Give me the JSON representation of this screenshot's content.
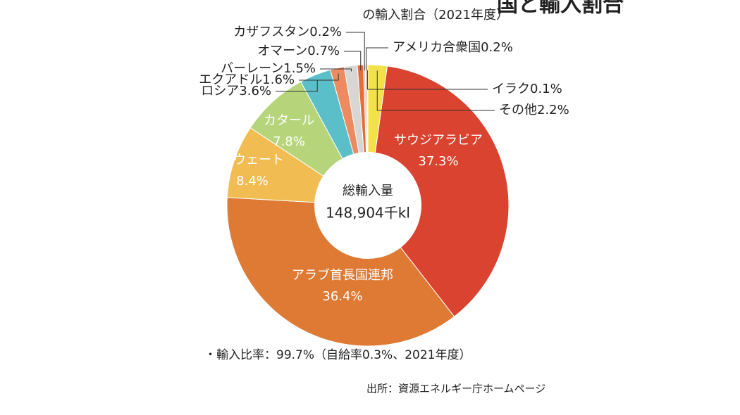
{
  "chart_data": {
    "type": "pie",
    "title": "国と輸入割合",
    "subtitle": "の輸入割合（2021年度）",
    "categories": [
      "その他",
      "サウジアラビア",
      "アラブ首長国連邦",
      "クウェート",
      "カタール",
      "ロシア",
      "エクアドル",
      "バーレーン",
      "オマーン",
      "カザフスタン",
      "アメリカ合衆国",
      "イラク"
    ],
    "values": [
      2.2,
      37.3,
      36.4,
      8.4,
      7.8,
      3.6,
      1.6,
      1.5,
      0.7,
      0.2,
      0.2,
      0.1
    ],
    "value_labels": [
      "2.2%",
      "37.3%",
      "36.4%",
      "8.4%",
      "7.8%",
      "3.6%",
      "1.6%",
      "1.5%",
      "0.7%",
      "0.2%",
      "0.2%",
      "0.1%"
    ],
    "colors": [
      "#f2e14a",
      "#d9432f",
      "#de7a34",
      "#f1bd52",
      "#b6d57b",
      "#5bbfc9",
      "#ee8a5f",
      "#d8d6d2",
      "#e56d3b",
      "#c8c6c2",
      "#eaa079",
      "#efc23f"
    ],
    "center_label": [
      "総輸入量",
      "148,904千kl"
    ],
    "notes": [
      "・輸入比率：99.7%（自給率0.3%、2021年度）",
      "出所：資源エネルギー庁ホームページ"
    ]
  }
}
